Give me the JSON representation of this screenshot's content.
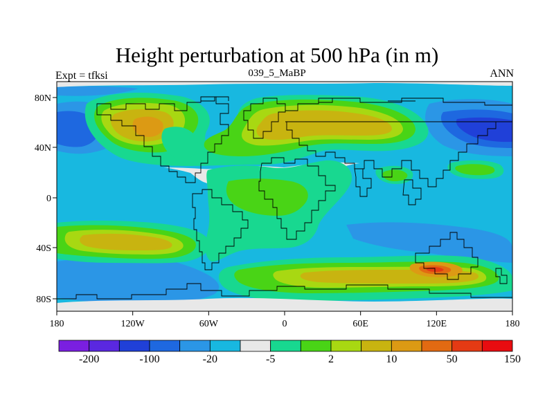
{
  "title": "Height perturbation at 500 hPa (in m)",
  "subtitle_left": "Expt = tfksi",
  "subtitle_center": "039_5_MaBP",
  "subtitle_right": "ANN",
  "palette": {
    "neg_extreme": "#7a1fe0",
    "neg_strong": "#5a28e0",
    "neg_high": "#2040d8",
    "neg_mid": "#1e68e0",
    "neg_low": "#2b96e6",
    "neg_weak": "#18b8e0",
    "neutral": "#e8e8e8",
    "pos_weak": "#18d890",
    "pos_low": "#49d416",
    "pos_mid": "#a8d812",
    "pos_high": "#c8b410",
    "pos_strong": "#dc9a14",
    "pos_very": "#e26a12",
    "pos_extreme": "#e43a14",
    "pos_max": "#e80c10"
  },
  "map": {
    "x_ticks": [
      "180",
      "120W",
      "60W",
      "0",
      "60E",
      "120E",
      "180"
    ],
    "y_ticks": [
      "80N",
      "40N",
      "0",
      "40S",
      "80S"
    ]
  },
  "colorbar": {
    "colors": [
      "#7a1fe0",
      "#5a28e0",
      "#2040d8",
      "#1e68e0",
      "#2b96e6",
      "#18b8e0",
      "#e8e8e8",
      "#18d890",
      "#49d416",
      "#a8d812",
      "#c8b410",
      "#dc9a14",
      "#e26a12",
      "#e43a14",
      "#e80c10"
    ],
    "labels": [
      "-200",
      "-100",
      "-20",
      "-5",
      "2",
      "10",
      "50",
      "150"
    ]
  }
}
